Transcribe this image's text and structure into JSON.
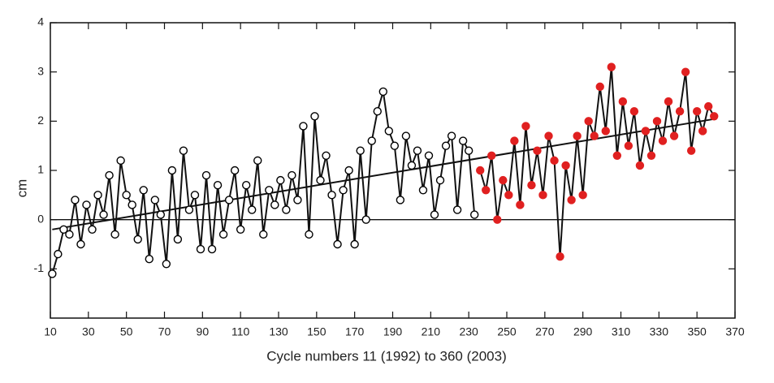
{
  "chart_data": {
    "type": "line",
    "xlabel": "Cycle numbers 11 (1992) to 360 (2003)",
    "ylabel": "cm",
    "xlim": [
      10,
      370
    ],
    "ylim": [
      -2,
      4
    ],
    "xticks": [
      10,
      30,
      50,
      70,
      90,
      110,
      130,
      150,
      170,
      190,
      210,
      230,
      250,
      270,
      290,
      310,
      330,
      350,
      370
    ],
    "yticks": [
      -1,
      0,
      1,
      2,
      3,
      4
    ],
    "reference_line": 0,
    "series": [
      {
        "color": "#000000",
        "x": [
          11,
          14,
          17,
          20,
          23,
          26,
          29,
          32,
          35,
          38,
          41,
          44,
          47,
          50,
          53,
          56,
          59,
          62,
          65,
          68,
          71,
          74,
          77,
          80,
          83,
          86,
          89,
          92,
          95,
          98,
          101,
          104,
          107,
          110,
          113,
          116,
          119,
          122,
          125,
          128,
          131,
          134,
          137,
          140,
          143,
          146,
          149,
          152,
          155,
          158,
          161,
          164,
          167,
          170,
          173,
          176,
          179,
          182,
          185,
          188,
          191,
          194,
          197,
          200,
          203,
          206,
          209,
          212,
          215,
          218,
          221,
          224,
          227,
          230,
          233
        ],
        "values": [
          -1.1,
          -0.7,
          -0.2,
          -0.3,
          0.4,
          -0.5,
          0.3,
          -0.2,
          0.5,
          0.1,
          0.9,
          -0.3,
          1.2,
          0.5,
          0.3,
          -0.4,
          0.6,
          -0.8,
          0.4,
          0.1,
          -0.9,
          1.0,
          -0.4,
          1.4,
          0.2,
          0.5,
          -0.6,
          0.9,
          -0.6,
          0.7,
          -0.3,
          0.4,
          1.0,
          -0.2,
          0.7,
          0.2,
          1.2,
          -0.3,
          0.6,
          0.3,
          0.8,
          0.2,
          0.9,
          0.4,
          1.9,
          -0.3,
          2.1,
          0.8,
          1.3,
          0.5,
          -0.5,
          0.6,
          1.0,
          -0.5,
          1.4,
          0.0,
          1.6,
          2.2,
          2.6,
          1.8,
          1.5,
          0.4,
          1.7,
          1.1,
          1.4,
          0.6,
          1.3,
          0.1,
          0.8,
          1.5,
          1.7,
          0.2,
          1.6,
          1.4,
          0.1
        ]
      },
      {
        "color": "#e02020",
        "x": [
          236,
          239,
          242,
          245,
          248,
          251,
          254,
          257,
          260,
          263,
          266,
          269,
          272,
          275,
          278,
          281,
          284,
          287,
          290,
          293,
          296,
          299,
          302,
          305,
          308,
          311,
          314,
          317,
          320,
          323,
          326,
          329,
          332,
          335,
          338,
          341,
          344,
          347,
          350,
          353,
          356,
          359
        ],
        "values": [
          1.0,
          0.6,
          1.3,
          0.0,
          0.8,
          0.5,
          1.6,
          0.3,
          1.9,
          0.7,
          1.4,
          0.5,
          1.7,
          1.2,
          -0.75,
          1.1,
          0.4,
          1.7,
          0.5,
          2.0,
          1.7,
          2.7,
          1.8,
          3.1,
          1.3,
          2.4,
          1.5,
          2.2,
          1.1,
          1.8,
          1.3,
          2.0,
          1.6,
          2.4,
          1.7,
          2.2,
          3.0,
          1.4,
          2.2,
          1.8,
          2.3,
          2.1
        ]
      }
    ],
    "trend_line": {
      "x": [
        11,
        360
      ],
      "values": [
        -0.2,
        2.05
      ]
    }
  }
}
